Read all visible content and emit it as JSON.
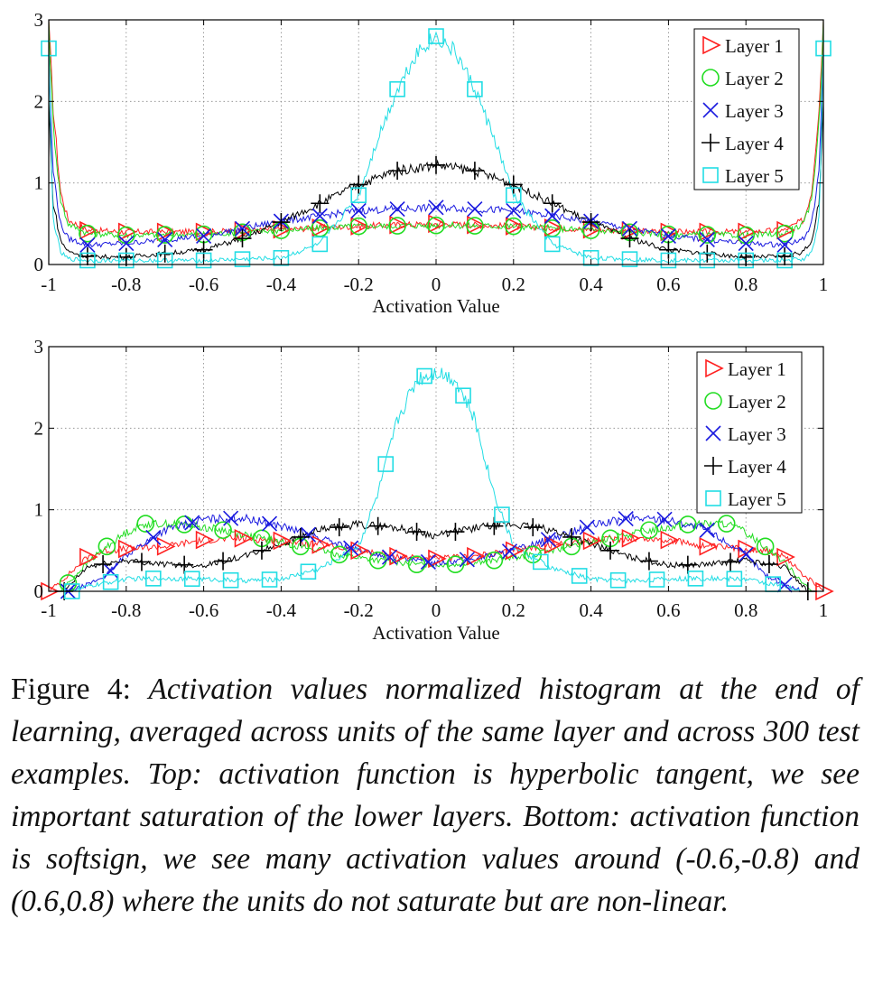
{
  "colors": {
    "layer1": "#ff2020",
    "layer2": "#22dd22",
    "layer3": "#1a1adf",
    "layer4": "#000000",
    "layer5": "#22dde4"
  },
  "chart_data": [
    {
      "type": "line",
      "xlabel": "Activation Value",
      "ylabel": "",
      "xlim": [
        -1,
        1
      ],
      "ylim": [
        0,
        3
      ],
      "xticks": [
        "-1",
        "-0.8",
        "-0.6",
        "-0.4",
        "-0.2",
        "0",
        "0.2",
        "0.4",
        "0.6",
        "0.8",
        "1"
      ],
      "yticks": [
        "0",
        "1",
        "2",
        "3"
      ],
      "grid": true,
      "legend_position": "top-right",
      "series": [
        {
          "name": "Layer 1",
          "marker": "triangle-right",
          "x": [
            -1,
            -0.99,
            -0.97,
            -0.95,
            -0.9,
            -0.8,
            -0.6,
            -0.4,
            -0.2,
            0,
            0.2,
            0.4,
            0.6,
            0.8,
            0.9,
            0.95,
            0.97,
            0.99,
            1
          ],
          "y": [
            3.0,
            2.0,
            0.9,
            0.55,
            0.42,
            0.4,
            0.4,
            0.43,
            0.47,
            0.5,
            0.47,
            0.43,
            0.4,
            0.4,
            0.42,
            0.55,
            0.9,
            2.0,
            3.0
          ],
          "marker_x": [
            -0.9,
            -0.8,
            -0.7,
            -0.6,
            -0.5,
            -0.4,
            -0.3,
            -0.2,
            -0.1,
            0,
            0.1,
            0.2,
            0.3,
            0.4,
            0.5,
            0.6,
            0.7,
            0.8,
            0.9
          ]
        },
        {
          "name": "Layer 2",
          "marker": "circle",
          "x": [
            -1,
            -0.99,
            -0.97,
            -0.95,
            -0.9,
            -0.8,
            -0.6,
            -0.4,
            -0.2,
            0,
            0.2,
            0.4,
            0.6,
            0.8,
            0.9,
            0.95,
            0.97,
            0.99,
            1
          ],
          "y": [
            3.0,
            1.8,
            0.8,
            0.5,
            0.38,
            0.36,
            0.37,
            0.42,
            0.47,
            0.48,
            0.47,
            0.42,
            0.37,
            0.36,
            0.38,
            0.5,
            0.8,
            1.8,
            3.0
          ],
          "marker_x": [
            -0.9,
            -0.8,
            -0.7,
            -0.6,
            -0.5,
            -0.4,
            -0.3,
            -0.2,
            -0.1,
            0,
            0.1,
            0.2,
            0.3,
            0.4,
            0.5,
            0.6,
            0.7,
            0.8,
            0.9
          ]
        },
        {
          "name": "Layer 3",
          "marker": "x",
          "x": [
            -1,
            -0.99,
            -0.97,
            -0.95,
            -0.9,
            -0.8,
            -0.6,
            -0.4,
            -0.2,
            0,
            0.2,
            0.4,
            0.6,
            0.8,
            0.9,
            0.95,
            0.97,
            0.99,
            1
          ],
          "y": [
            2.6,
            1.2,
            0.5,
            0.32,
            0.24,
            0.26,
            0.35,
            0.53,
            0.66,
            0.7,
            0.66,
            0.53,
            0.35,
            0.26,
            0.24,
            0.32,
            0.5,
            1.2,
            2.6
          ],
          "marker_x": [
            -0.9,
            -0.8,
            -0.7,
            -0.6,
            -0.5,
            -0.4,
            -0.3,
            -0.2,
            -0.1,
            0,
            0.1,
            0.2,
            0.3,
            0.4,
            0.5,
            0.6,
            0.7,
            0.8,
            0.9
          ]
        },
        {
          "name": "Layer 4",
          "marker": "plus",
          "x": [
            -1,
            -0.99,
            -0.97,
            -0.95,
            -0.9,
            -0.8,
            -0.6,
            -0.5,
            -0.4,
            -0.3,
            -0.2,
            -0.1,
            0,
            0.1,
            0.2,
            0.3,
            0.4,
            0.5,
            0.6,
            0.8,
            0.9,
            0.95,
            0.97,
            0.99,
            1
          ],
          "y": [
            2.0,
            0.8,
            0.3,
            0.16,
            0.1,
            0.09,
            0.18,
            0.32,
            0.52,
            0.75,
            0.98,
            1.15,
            1.22,
            1.15,
            0.98,
            0.75,
            0.52,
            0.32,
            0.18,
            0.09,
            0.1,
            0.16,
            0.3,
            0.8,
            2.0
          ],
          "marker_x": [
            -0.9,
            -0.8,
            -0.7,
            -0.6,
            -0.5,
            -0.4,
            -0.3,
            -0.2,
            -0.1,
            0,
            0.1,
            0.2,
            0.3,
            0.4,
            0.5,
            0.6,
            0.7,
            0.8,
            0.9
          ]
        },
        {
          "name": "Layer 5",
          "marker": "square",
          "x": [
            -1,
            -0.99,
            -0.97,
            -0.95,
            -0.9,
            -0.8,
            -0.6,
            -0.4,
            -0.3,
            -0.2,
            -0.15,
            -0.1,
            -0.05,
            0,
            0.05,
            0.1,
            0.15,
            0.2,
            0.3,
            0.4,
            0.6,
            0.8,
            0.9,
            0.95,
            0.97,
            0.99,
            1
          ],
          "y": [
            2.65,
            0.6,
            0.15,
            0.07,
            0.05,
            0.05,
            0.05,
            0.08,
            0.25,
            0.85,
            1.55,
            2.15,
            2.6,
            2.8,
            2.6,
            2.15,
            1.55,
            0.85,
            0.25,
            0.08,
            0.05,
            0.05,
            0.05,
            0.07,
            0.15,
            0.6,
            2.65
          ],
          "marker_x": [
            -1,
            -0.9,
            -0.8,
            -0.7,
            -0.6,
            -0.5,
            -0.4,
            -0.3,
            -0.2,
            -0.1,
            0,
            0.1,
            0.2,
            0.3,
            0.4,
            0.5,
            0.6,
            0.7,
            0.8,
            0.9,
            1
          ]
        }
      ]
    },
    {
      "type": "line",
      "xlabel": "Activation Value",
      "ylabel": "",
      "xlim": [
        -1,
        1
      ],
      "ylim": [
        0,
        3
      ],
      "xticks": [
        "-1",
        "-0.8",
        "-0.6",
        "-0.4",
        "-0.2",
        "0",
        "0.2",
        "0.4",
        "0.6",
        "0.8",
        "1"
      ],
      "yticks": [
        "0",
        "1",
        "2",
        "3"
      ],
      "grid": true,
      "legend_position": "top-right",
      "series": [
        {
          "name": "Layer 1",
          "marker": "triangle-right",
          "x": [
            -1,
            -0.95,
            -0.9,
            -0.85,
            -0.8,
            -0.7,
            -0.6,
            -0.5,
            -0.4,
            -0.3,
            -0.2,
            -0.1,
            0,
            0.1,
            0.2,
            0.3,
            0.4,
            0.5,
            0.6,
            0.7,
            0.8,
            0.85,
            0.9,
            0.95,
            1
          ],
          "y": [
            0.0,
            0.2,
            0.42,
            0.5,
            0.52,
            0.55,
            0.63,
            0.65,
            0.62,
            0.57,
            0.5,
            0.43,
            0.4,
            0.43,
            0.5,
            0.57,
            0.62,
            0.65,
            0.63,
            0.55,
            0.52,
            0.5,
            0.42,
            0.2,
            0.0
          ],
          "marker_x": [
            -1,
            -0.9,
            -0.8,
            -0.7,
            -0.6,
            -0.5,
            -0.4,
            -0.3,
            -0.2,
            -0.1,
            0,
            0.1,
            0.2,
            0.3,
            0.4,
            0.5,
            0.6,
            0.7,
            0.8,
            0.9,
            1
          ]
        },
        {
          "name": "Layer 2",
          "marker": "circle",
          "x": [
            -0.97,
            -0.9,
            -0.85,
            -0.8,
            -0.75,
            -0.65,
            -0.55,
            -0.45,
            -0.35,
            -0.25,
            -0.15,
            -0.05,
            0.05,
            0.15,
            0.25,
            0.35,
            0.45,
            0.55,
            0.65,
            0.75,
            0.8,
            0.85,
            0.9,
            0.97
          ],
          "y": [
            0.0,
            0.35,
            0.55,
            0.72,
            0.83,
            0.82,
            0.75,
            0.65,
            0.55,
            0.45,
            0.38,
            0.33,
            0.33,
            0.38,
            0.45,
            0.55,
            0.65,
            0.75,
            0.82,
            0.83,
            0.72,
            0.55,
            0.35,
            0.0
          ],
          "marker_x": [
            -0.95,
            -0.85,
            -0.75,
            -0.65,
            -0.55,
            -0.45,
            -0.35,
            -0.25,
            -0.15,
            -0.05,
            0.05,
            0.15,
            0.25,
            0.35,
            0.45,
            0.55,
            0.65,
            0.75,
            0.85
          ]
        },
        {
          "name": "Layer 3",
          "marker": "x",
          "x": [
            -0.95,
            -0.9,
            -0.85,
            -0.8,
            -0.7,
            -0.6,
            -0.5,
            -0.4,
            -0.3,
            -0.2,
            -0.1,
            0,
            0.1,
            0.2,
            0.3,
            0.4,
            0.5,
            0.6,
            0.7,
            0.8,
            0.85,
            0.9,
            0.95
          ],
          "y": [
            0.0,
            0.08,
            0.2,
            0.45,
            0.75,
            0.88,
            0.9,
            0.8,
            0.65,
            0.5,
            0.4,
            0.35,
            0.4,
            0.5,
            0.65,
            0.8,
            0.9,
            0.88,
            0.75,
            0.45,
            0.2,
            0.08,
            0.0
          ],
          "marker_x": [
            -0.95,
            -0.84,
            -0.73,
            -0.63,
            -0.53,
            -0.43,
            -0.33,
            -0.22,
            -0.12,
            -0.02,
            0.08,
            0.19,
            0.29,
            0.39,
            0.49,
            0.59,
            0.7,
            0.8,
            0.9
          ]
        },
        {
          "name": "Layer 4",
          "marker": "plus",
          "x": [
            -0.96,
            -0.9,
            -0.8,
            -0.7,
            -0.6,
            -0.5,
            -0.4,
            -0.3,
            -0.2,
            -0.1,
            0,
            0.1,
            0.2,
            0.3,
            0.4,
            0.5,
            0.6,
            0.7,
            0.8,
            0.9,
            0.96
          ],
          "y": [
            0.0,
            0.3,
            0.38,
            0.33,
            0.32,
            0.42,
            0.58,
            0.75,
            0.82,
            0.78,
            0.68,
            0.78,
            0.82,
            0.75,
            0.58,
            0.42,
            0.32,
            0.33,
            0.38,
            0.3,
            0.0
          ],
          "marker_x": [
            -0.96,
            -0.86,
            -0.76,
            -0.65,
            -0.55,
            -0.45,
            -0.35,
            -0.25,
            -0.15,
            -0.05,
            0.05,
            0.15,
            0.25,
            0.35,
            0.45,
            0.55,
            0.65,
            0.76,
            0.86,
            0.96
          ]
        },
        {
          "name": "Layer 5",
          "marker": "square",
          "x": [
            -0.94,
            -0.9,
            -0.8,
            -0.7,
            -0.6,
            -0.5,
            -0.4,
            -0.3,
            -0.2,
            -0.15,
            -0.1,
            -0.05,
            0,
            0.05,
            0.1,
            0.15,
            0.2,
            0.3,
            0.4,
            0.5,
            0.6,
            0.7,
            0.8,
            0.9,
            0.94
          ],
          "y": [
            0.0,
            0.06,
            0.15,
            0.16,
            0.15,
            0.13,
            0.15,
            0.28,
            0.55,
            1.2,
            2.1,
            2.6,
            2.7,
            2.6,
            2.1,
            1.2,
            0.55,
            0.28,
            0.15,
            0.13,
            0.15,
            0.16,
            0.15,
            0.06,
            0.0
          ],
          "marker_x": [
            -0.94,
            -0.84,
            -0.73,
            -0.63,
            -0.53,
            -0.43,
            -0.33,
            -0.13,
            -0.03,
            0.07,
            0.17,
            0.27,
            0.37,
            0.47,
            0.57,
            0.67,
            0.77,
            0.87
          ]
        }
      ]
    }
  ],
  "caption": {
    "label": "Figure 4:",
    "text": "Activation values normalized histogram at the end of learning, averaged across units of the same layer and across 300 test examples. Top: activation function is hyperbolic tangent, we see important saturation of the lower layers. Bottom: activation function is softsign, we see many activation values around (-0.6,-0.8) and (0.6,0.8) where the units do not saturate but are non-linear."
  }
}
